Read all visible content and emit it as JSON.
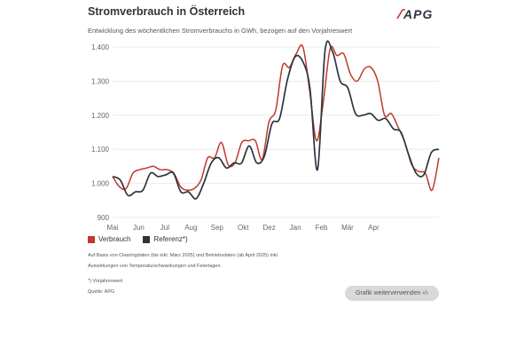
{
  "header": {
    "title": "Stromverbrauch in Österreich",
    "subtitle": "Entwicklung des wöchentlichen Stromverbrauchs in GWh, bezogen auf den Vorjahreswert",
    "logo_text": "APG"
  },
  "colors": {
    "verbrauch": "#c0392b",
    "referenz": "#2c3440",
    "grid": "#e6e6e6"
  },
  "chart_data": {
    "type": "line",
    "title": "Stromverbrauch in Österreich",
    "xlabel": "",
    "ylabel": "GWh",
    "ylim": [
      900,
      1400
    ],
    "yticks": [
      900,
      1000,
      1100,
      1200,
      1300,
      1400
    ],
    "ytick_labels": [
      "900",
      "1.000",
      "1.100",
      "1.200",
      "1.300",
      "1.400"
    ],
    "x_range": [
      0,
      50
    ],
    "month_ticks": [
      {
        "label": "Mai",
        "x": 0
      },
      {
        "label": "Jun",
        "x": 4
      },
      {
        "label": "Jul",
        "x": 8
      },
      {
        "label": "Aug",
        "x": 12
      },
      {
        "label": "Sep",
        "x": 16
      },
      {
        "label": "Okt",
        "x": 20
      },
      {
        "label": "Dez",
        "x": 24
      },
      {
        "label": "Jan",
        "x": 28
      },
      {
        "label": "Feb",
        "x": 32
      },
      {
        "label": "Mär",
        "x": 36
      },
      {
        "label": "Apr",
        "x": 40
      }
    ],
    "series": [
      {
        "name": "Verbrauch",
        "color": "#c0392b",
        "values": [
          1020,
          990,
          985,
          1030,
          1040,
          1045,
          1050,
          1040,
          1040,
          1030,
          990,
          980,
          985,
          1010,
          1075,
          1075,
          1120,
          1055,
          1060,
          1120,
          1125,
          1125,
          1070,
          1180,
          1215,
          1345,
          1340,
          1380,
          1400,
          1270,
          1125,
          1240,
          1395,
          1375,
          1380,
          1320,
          1300,
          1335,
          1340,
          1300,
          1200,
          1205,
          1165,
          1120,
          1055,
          1035,
          1030,
          980,
          1075
        ]
      },
      {
        "name": "Referenz*)",
        "color": "#2c3440",
        "values": [
          1020,
          1010,
          965,
          975,
          980,
          1030,
          1020,
          1025,
          1030,
          975,
          975,
          955,
          1000,
          1060,
          1075,
          1045,
          1060,
          1060,
          1110,
          1060,
          1080,
          1175,
          1190,
          1300,
          1370,
          1360,
          1280,
          1040,
          1390,
          1385,
          1300,
          1280,
          1205,
          1200,
          1205,
          1185,
          1190,
          1160,
          1150,
          1085,
          1030,
          1025,
          1090,
          1100
        ]
      }
    ],
    "legend": [
      "Verbrauch",
      "Referenz*)"
    ],
    "legend_position": "bottom-left",
    "grid": true
  },
  "footnotes": {
    "line1": "Auf Basis von Clearingdaten (bis inkl. März 2025) und Betriebsdaten (ab April 2025) inkl.",
    "line2": "Auswirkungen von Temperaturschwankungen und Feiertagen.",
    "line3": "*) Vorjahreswert",
    "line4": "Quelle: APG"
  },
  "share_button_label": "Grafik weiterverwenden ‹/›"
}
